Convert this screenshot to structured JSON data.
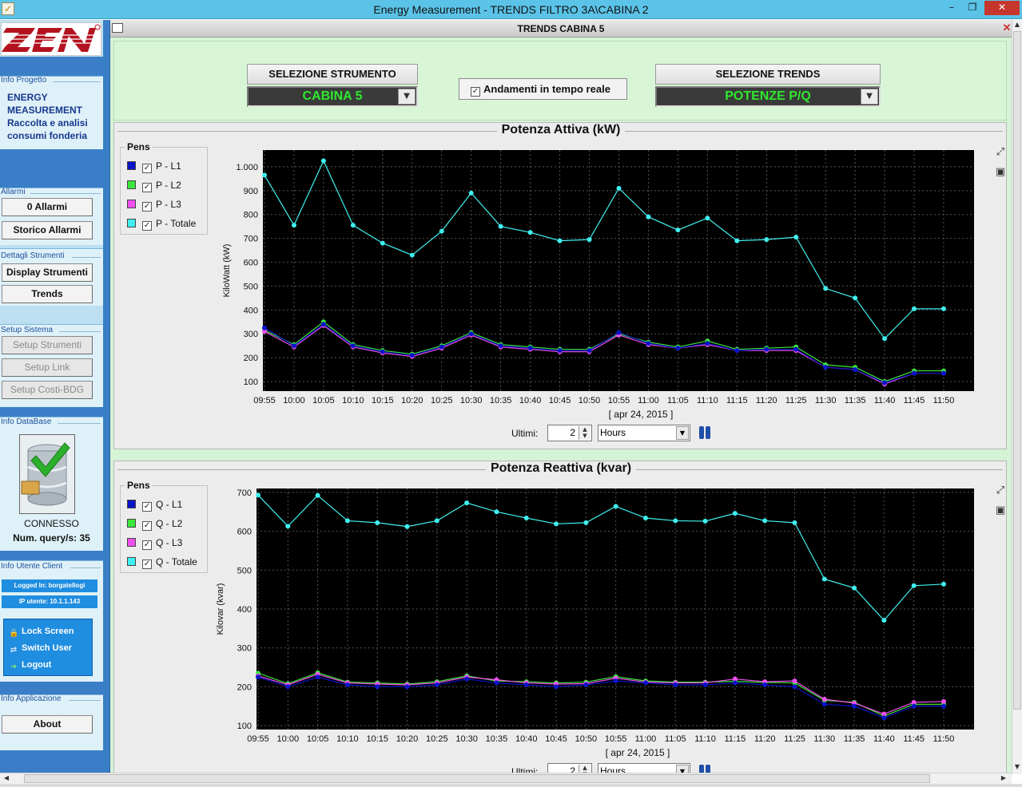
{
  "window": {
    "title": "Energy Measurement - TRENDS FILTRO 3A\\CABINA 2",
    "inner_title": "TRENDS CABINA 5",
    "minimize": "–",
    "maximize": "❐",
    "close": "✕",
    "inner_close": "✕"
  },
  "sidebar": {
    "logo_text": "ZEN",
    "project_label": "Info Progetto",
    "project_lines": [
      "ENERGY",
      "MEASUREMENT",
      "Raccolta e analisi",
      "consumi fonderia"
    ],
    "alarms_label": "Allarmi",
    "alarms_button": "0 Allarmi",
    "alarms_history_button": "Storico Allarmi",
    "details_label": "Dettagli Strumenti",
    "display_button": "Display Strumenti",
    "trends_button": "Trends",
    "setup_label": "Setup Sistema",
    "setup_instruments_button": "Setup Strumenti",
    "setup_link_button": "Setup Link",
    "setup_costs_button": "Setup Costi-BDG",
    "db_label": "Info DataBase",
    "db_status": "CONNESSO",
    "db_query_label": "Num. query/s:",
    "db_query_value": "35",
    "user_label": "Info Utente Client",
    "logged_in": "Logged In: borgatellogi",
    "ip": "IP utente: 10.1.1.143",
    "lock_screen": "Lock Screen",
    "switch_user": "Switch User",
    "logout": "Logout",
    "app_label": "Info Applicazione",
    "about_button": "About"
  },
  "topbar": {
    "instrument_title": "SELEZIONE STRUMENTO",
    "instrument_value": "CABINA 5",
    "realtime_label": "Andamenti in tempo reale",
    "realtime_checked": true,
    "trend_title": "SELEZIONE TRENDS",
    "trend_value": "POTENZE P/Q"
  },
  "controls": {
    "last_label": "Ultimi:",
    "last_value": "2",
    "unit_value": "Hours"
  },
  "colors": {
    "L1": "#0a14c8",
    "L2": "#3ce63c",
    "L3": "#f050f0",
    "Totale": "#40f0f0",
    "plot_bg": "#000000",
    "value_text": "#2ee82e"
  },
  "chart_data": [
    {
      "type": "line",
      "title": "Potenza Attiva (kW)",
      "xlabel": "[ apr 24, 2015 ]",
      "ylabel": "KiloWatt (kW)",
      "legend_title": "Pens",
      "ylim": [
        60,
        1070
      ],
      "yticks": [
        100,
        200,
        300,
        400,
        500,
        600,
        700,
        800,
        900,
        1000
      ],
      "ytick_labels": [
        "100",
        "200",
        "300",
        "400",
        "500",
        "600",
        "700",
        "800",
        "900",
        "1.000"
      ],
      "x": [
        "09:55",
        "10:00",
        "10:05",
        "10:10",
        "10:15",
        "10:20",
        "10:25",
        "10:30",
        "10:35",
        "10:40",
        "10:45",
        "10:50",
        "10:55",
        "11:00",
        "11:05",
        "11:10",
        "11:15",
        "11:20",
        "11:25",
        "11:30",
        "11:35",
        "11:40",
        "11:45",
        "11:50"
      ],
      "grid": true,
      "series": [
        {
          "name": "P - L1",
          "color": "#0a14c8",
          "values": [
            325,
            250,
            340,
            250,
            225,
            210,
            245,
            300,
            250,
            240,
            230,
            230,
            305,
            260,
            240,
            260,
            230,
            235,
            235,
            160,
            150,
            95,
            135,
            135
          ]
        },
        {
          "name": "P - L2",
          "color": "#3ce63c",
          "values": [
            315,
            255,
            350,
            255,
            230,
            215,
            250,
            305,
            255,
            245,
            235,
            235,
            300,
            265,
            245,
            270,
            235,
            240,
            245,
            170,
            160,
            100,
            145,
            145
          ]
        },
        {
          "name": "P - L3",
          "color": "#f050f0",
          "values": [
            310,
            245,
            335,
            245,
            220,
            205,
            240,
            295,
            245,
            235,
            225,
            225,
            295,
            255,
            240,
            255,
            230,
            230,
            230,
            160,
            150,
            90,
            135,
            135
          ]
        },
        {
          "name": "P - Totale",
          "color": "#40f0f0",
          "values": [
            965,
            755,
            1025,
            755,
            680,
            630,
            730,
            890,
            750,
            725,
            690,
            695,
            910,
            790,
            735,
            785,
            690,
            695,
            705,
            490,
            450,
            280,
            405,
            405
          ]
        }
      ]
    },
    {
      "type": "line",
      "title": "Potenza Reattiva (kvar)",
      "xlabel": "[ apr 24, 2015 ]",
      "ylabel": "Kilovar (kvar)",
      "legend_title": "Pens",
      "ylim": [
        90,
        710
      ],
      "yticks": [
        100,
        200,
        300,
        400,
        500,
        600,
        700
      ],
      "ytick_labels": [
        "100",
        "200",
        "300",
        "400",
        "500",
        "600",
        "700"
      ],
      "x": [
        "09:55",
        "10:00",
        "10:05",
        "10:10",
        "10:15",
        "10:20",
        "10:25",
        "10:30",
        "10:35",
        "10:40",
        "10:45",
        "10:50",
        "10:55",
        "11:00",
        "11:05",
        "11:10",
        "11:15",
        "11:20",
        "11:25",
        "11:30",
        "11:35",
        "11:40",
        "11:45",
        "11:50"
      ],
      "grid": true,
      "series": [
        {
          "name": "Q - L1",
          "color": "#0a14c8",
          "values": [
            225,
            200,
            225,
            205,
            200,
            200,
            205,
            220,
            210,
            205,
            200,
            205,
            215,
            210,
            205,
            205,
            210,
            205,
            200,
            155,
            150,
            120,
            150,
            150
          ]
        },
        {
          "name": "Q - L2",
          "color": "#3ce63c",
          "values": [
            235,
            208,
            236,
            212,
            210,
            207,
            213,
            228,
            215,
            213,
            210,
            212,
            226,
            215,
            212,
            212,
            214,
            211,
            210,
            165,
            160,
            125,
            155,
            155
          ]
        },
        {
          "name": "Q - L3",
          "color": "#f050f0",
          "values": [
            228,
            205,
            232,
            210,
            207,
            205,
            210,
            225,
            218,
            210,
            207,
            208,
            222,
            212,
            210,
            210,
            220,
            213,
            215,
            168,
            158,
            130,
            160,
            162
          ]
        },
        {
          "name": "Q - Totale",
          "color": "#40f0f0",
          "values": [
            693,
            613,
            692,
            627,
            622,
            612,
            627,
            673,
            650,
            634,
            619,
            622,
            664,
            634,
            627,
            626,
            646,
            627,
            622,
            477,
            454,
            371,
            460,
            464
          ]
        }
      ]
    }
  ]
}
